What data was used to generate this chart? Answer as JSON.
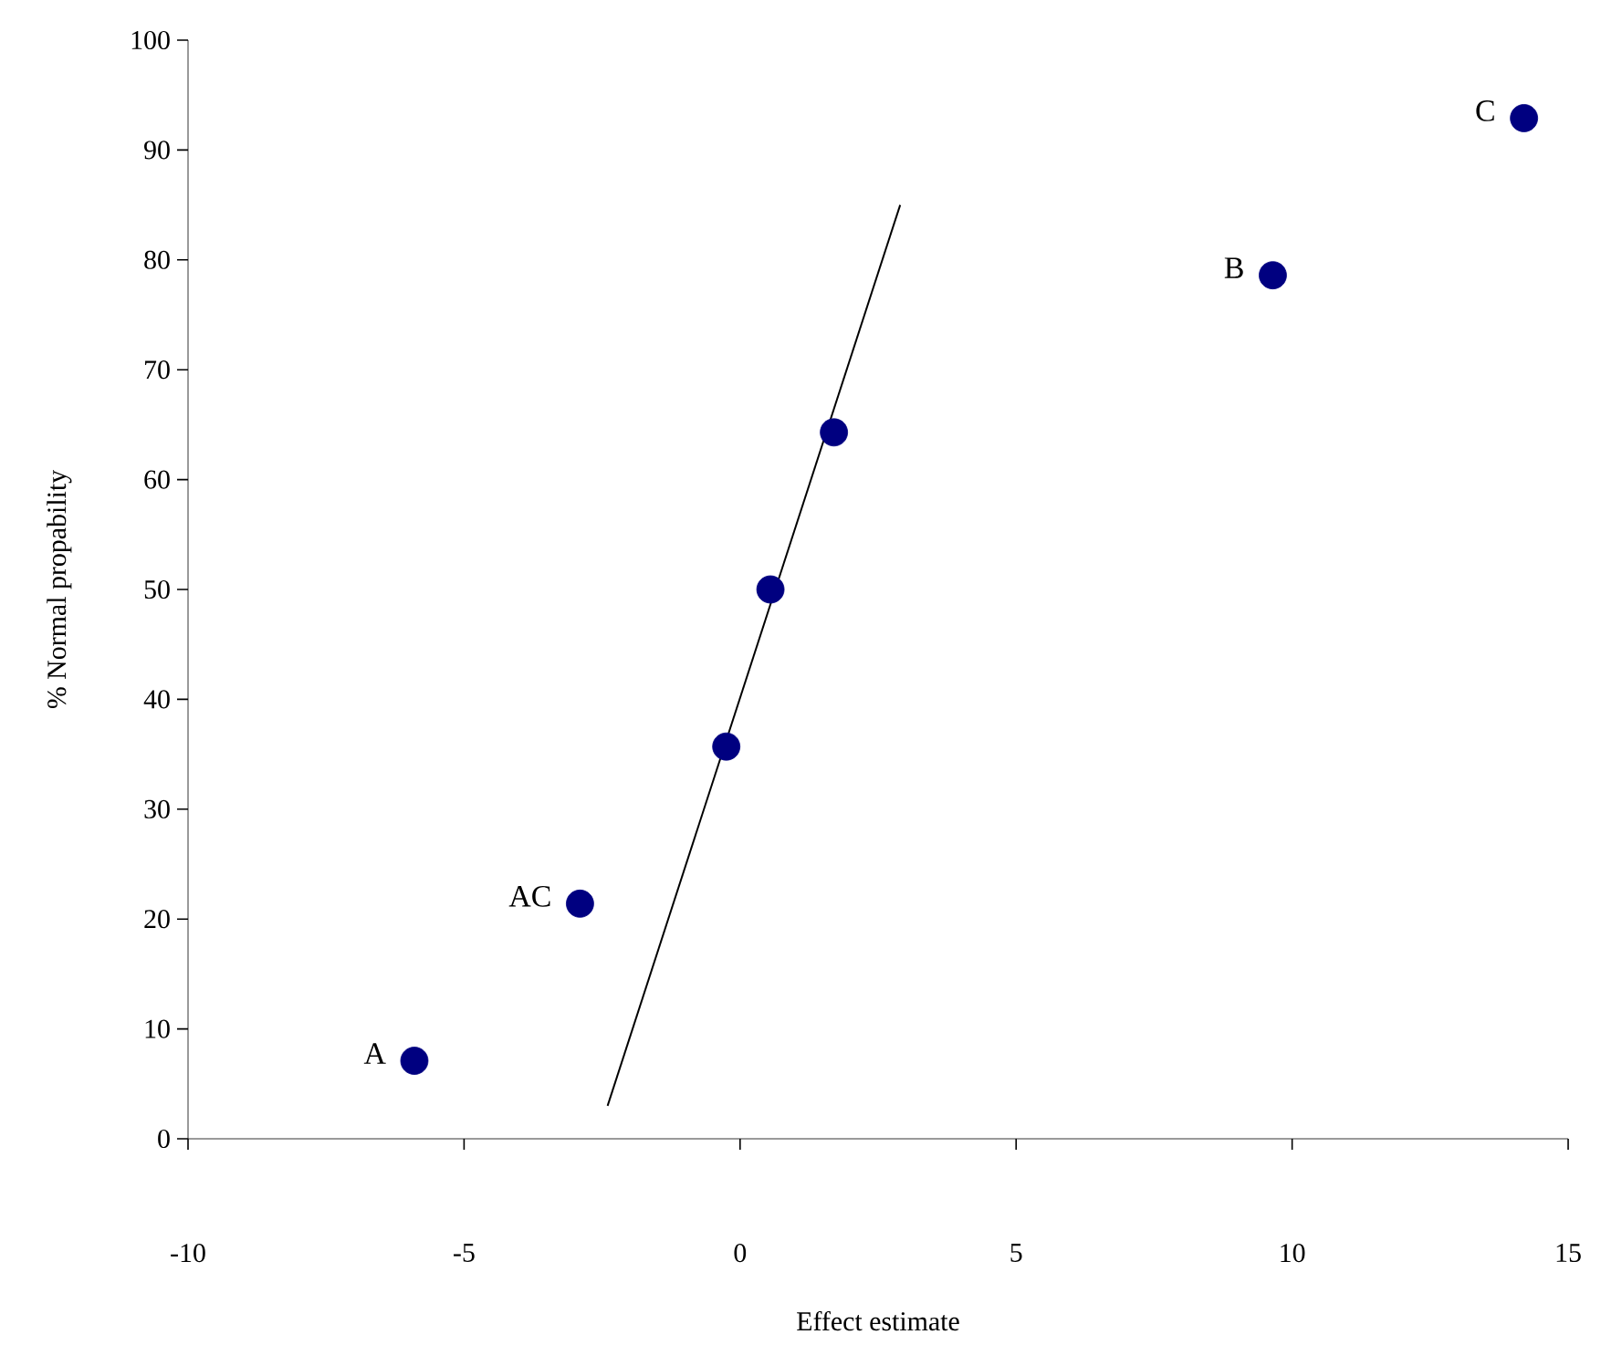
{
  "chart_data": {
    "type": "scatter",
    "xlabel": "Effect estimate",
    "ylabel": "% Normal propability",
    "xlim": [
      -10,
      15
    ],
    "xticks": [
      -10,
      -5,
      0,
      5,
      10,
      15
    ],
    "ylim": [
      0,
      100
    ],
    "yticks": [
      0,
      10,
      20,
      30,
      40,
      50,
      60,
      70,
      80,
      90,
      100
    ],
    "grid": false,
    "series": [
      {
        "type": "scatter",
        "marker": "circle",
        "color": "#000080",
        "x": [
          -5.9,
          -2.9,
          -0.25,
          0.55,
          1.7,
          9.65,
          14.2
        ],
        "values": [
          7.1,
          21.4,
          35.7,
          50.0,
          64.3,
          78.6,
          92.9
        ]
      },
      {
        "type": "line",
        "marker": "none",
        "color": "#000000",
        "x": [
          -2.4,
          2.9
        ],
        "values": [
          3,
          85
        ]
      }
    ],
    "annotations": [
      {
        "text": "A",
        "x": -5.9,
        "y": 7.1
      },
      {
        "text": "AC",
        "x": -2.9,
        "y": 21.4
      },
      {
        "text": "B",
        "x": 9.65,
        "y": 78.6
      },
      {
        "text": "C",
        "x": 14.2,
        "y": 92.9
      }
    ]
  }
}
